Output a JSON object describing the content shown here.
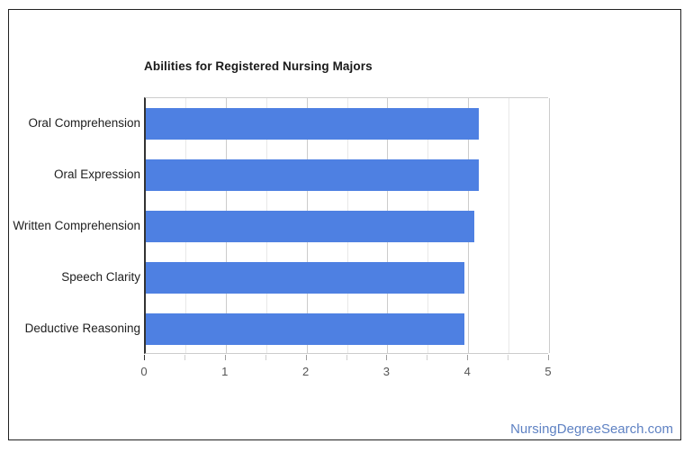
{
  "page": {
    "background": "#ffffff",
    "frame_border_color": "#222222"
  },
  "chart_data": {
    "type": "bar",
    "orientation": "horizontal",
    "title": "Abilities for Registered Nursing Majors",
    "categories": [
      "Oral Comprehension",
      "Oral Expression",
      "Written Comprehension",
      "Speech Clarity",
      "Deductive Reasoning"
    ],
    "values": [
      4.12,
      4.12,
      4.06,
      3.94,
      3.94
    ],
    "xlabel": "",
    "ylabel": "",
    "xlim": [
      0,
      5
    ],
    "x_tick_labels": [
      "0",
      "1",
      "2",
      "3",
      "4",
      "5"
    ],
    "minor_tick_step": 0.5,
    "grid": true,
    "legend": "none",
    "bar_color": "#4e80e2",
    "axis_line_color": "#333333",
    "major_grid_color": "#cccccc",
    "minor_grid_color": "#e8e8e8",
    "major_tick_color": "#9e9e9e",
    "minor_tick_color": "#cfcfcf",
    "zero_tick_color": "#333333",
    "title_color": "#1a1a1a",
    "category_label_color": "#212121",
    "tick_label_color": "#555555"
  },
  "footer": {
    "site_label": "NursingDegreeSearch.com",
    "color": "#5f82c3"
  }
}
